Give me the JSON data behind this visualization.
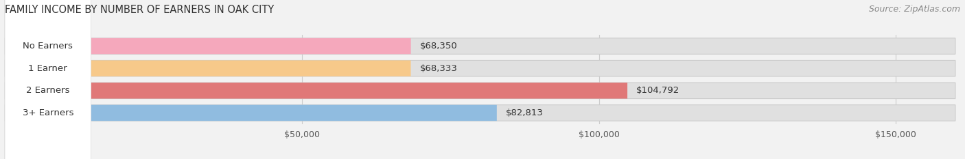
{
  "title": "FAMILY INCOME BY NUMBER OF EARNERS IN OAK CITY",
  "source": "Source: ZipAtlas.com",
  "categories": [
    "No Earners",
    "1 Earner",
    "2 Earners",
    "3+ Earners"
  ],
  "values": [
    68350,
    68333,
    104792,
    82813
  ],
  "bar_colors": [
    "#f5a8bc",
    "#f7c98a",
    "#e07878",
    "#90bce0"
  ],
  "xlim": [
    0,
    160000
  ],
  "xticks": [
    50000,
    100000,
    150000
  ],
  "xtick_labels": [
    "$50,000",
    "$100,000",
    "$150,000"
  ],
  "bar_height": 0.72,
  "row_bg_color": "#e8e8e8",
  "bg_color": "#f2f2f2",
  "title_fontsize": 10.5,
  "source_fontsize": 9,
  "label_fontsize": 9.5,
  "value_fontsize": 9.5,
  "tick_fontsize": 9
}
